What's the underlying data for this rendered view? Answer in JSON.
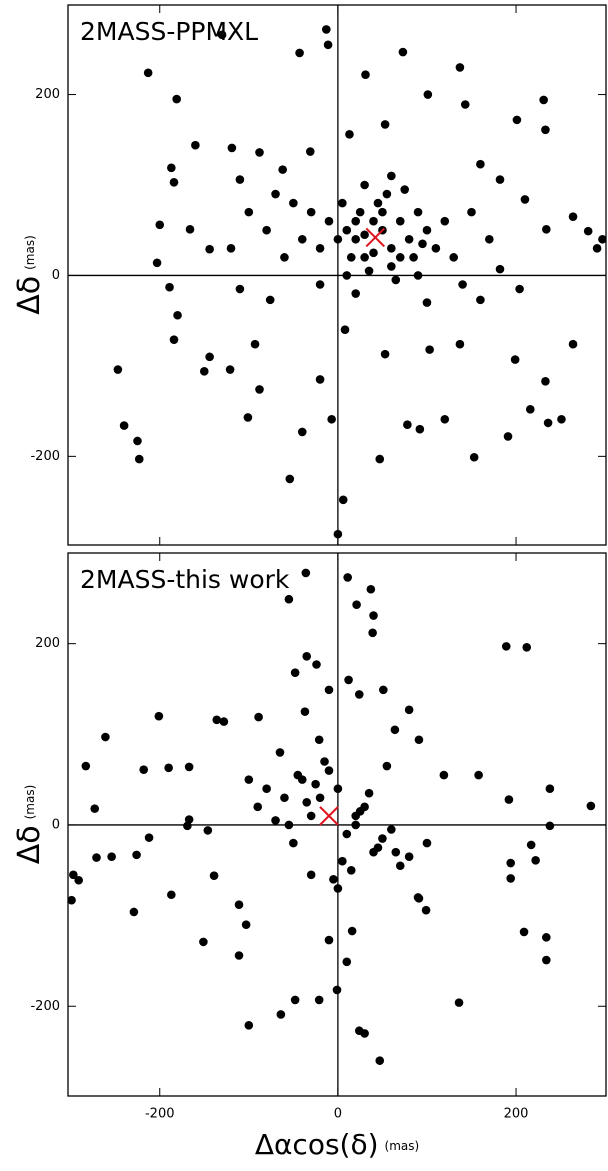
{
  "chart_data": [
    {
      "type": "scatter",
      "title": "2MASS-PPMXL",
      "ylabel": "Δδ",
      "ylabel_unit": "(mas)",
      "color": "#000000",
      "xlim": [
        -303,
        301
      ],
      "ylim": [
        -298,
        299
      ],
      "xticks": [
        -200,
        0,
        200
      ],
      "yticks": [
        -200,
        0,
        200
      ],
      "xtick_labels": false,
      "marker": {
        "x": 42,
        "y": 42,
        "color": "#e0141e"
      },
      "x": [
        -213,
        -181,
        -130,
        -43,
        -13,
        -11,
        73,
        31,
        137,
        231,
        233,
        201,
        143,
        101,
        53,
        13,
        -31,
        -88,
        -119,
        -160,
        -187,
        -184,
        -110,
        -62,
        -166,
        -200,
        -144,
        281,
        291,
        297,
        264,
        234,
        210,
        182,
        160,
        -203,
        -189,
        -180,
        -184,
        -144,
        -150,
        -121,
        -247,
        -240,
        -225,
        -223,
        -93,
        -88,
        -101,
        -40,
        -54,
        -7,
        6,
        0,
        47,
        78,
        92,
        120,
        153,
        191,
        236,
        251,
        233,
        199,
        216,
        264,
        137,
        103,
        53,
        -20,
        8,
        -76,
        -110,
        160,
        204,
        182,
        20,
        40,
        60,
        30,
        50,
        70,
        10,
        80,
        45,
        25,
        60,
        35,
        85,
        15,
        55,
        0,
        90,
        -10,
        100,
        75,
        30,
        -20,
        110,
        5,
        65,
        40,
        20,
        70,
        50,
        30,
        90,
        -30,
        120,
        -40,
        60,
        10,
        95,
        -50,
        130,
        -60,
        150,
        -80,
        140,
        -70,
        20,
        100,
        -20,
        -100,
        170,
        -120
      ],
      "y": [
        224,
        195,
        266,
        246,
        272,
        255,
        247,
        222,
        230,
        194,
        161,
        172,
        189,
        200,
        167,
        156,
        137,
        136,
        141,
        144,
        119,
        103,
        106,
        117,
        51,
        56,
        29,
        49,
        30,
        40,
        65,
        51,
        84,
        106,
        123,
        14,
        -13,
        -44,
        -71,
        -90,
        -106,
        -104,
        -104,
        -166,
        -183,
        -203,
        -76,
        -126,
        -157,
        -173,
        -225,
        -159,
        -248,
        -286,
        -203,
        -165,
        -170,
        -159,
        -201,
        -178,
        -163,
        -159,
        -117,
        -93,
        -148,
        -76,
        -76,
        -82,
        -87,
        -115,
        -60,
        -27,
        -15,
        -27,
        -15,
        7,
        40,
        60,
        30,
        20,
        50,
        60,
        50,
        40,
        80,
        70,
        10,
        5,
        20,
        20,
        90,
        40,
        70,
        60,
        50,
        95,
        100,
        30,
        30,
        80,
        -5,
        25,
        60,
        20,
        70,
        45,
        0,
        70,
        60,
        40,
        110,
        0,
        35,
        80,
        20,
        20,
        70,
        50,
        -10,
        90,
        -20,
        -30,
        -10,
        70,
        40,
        30
      ]
    },
    {
      "type": "scatter",
      "title": "2MASS-this work",
      "ylabel": "Δδ",
      "ylabel_unit": "(mas)",
      "xlabel": "Δαcos(δ)",
      "xlabel_unit": "(mas)",
      "color": "#000000",
      "xlim": [
        -303,
        301
      ],
      "ylim": [
        -299,
        300
      ],
      "xticks": [
        -200,
        0,
        200
      ],
      "yticks": [
        -200,
        0,
        200
      ],
      "xtick_labels": true,
      "marker": {
        "x": -10,
        "y": 10,
        "color": "#e0141e"
      },
      "x": [
        -36,
        11,
        37,
        -55,
        21,
        39,
        40,
        -35,
        -24,
        -48,
        -89,
        -136,
        -128,
        -201,
        -261,
        -283,
        -218,
        -190,
        -167,
        -273,
        -297,
        -291,
        -299,
        -254,
        -271,
        -226,
        -212,
        -229,
        -187,
        -167,
        -169,
        -146,
        -139,
        -111,
        -103,
        -111,
        -151,
        -100,
        -64,
        -48,
        -21,
        -1,
        10,
        -10,
        16,
        24,
        30,
        47,
        136,
        91,
        99,
        209,
        234,
        234,
        194,
        194,
        222,
        284,
        238,
        238,
        217,
        189,
        212,
        192,
        158,
        119,
        91,
        80,
        64,
        51,
        24,
        -10,
        12,
        -37,
        -21,
        -20,
        0,
        10,
        -30,
        -40,
        20,
        30,
        -50,
        -60,
        40,
        -10,
        5,
        -25,
        15,
        -35,
        25,
        50,
        -70,
        60,
        -80,
        -5,
        35,
        -45,
        45,
        70,
        -90,
        80,
        -15,
        0,
        -55,
        55,
        -30,
        20,
        90,
        -100,
        100,
        -65,
        65
      ],
      "y": [
        278,
        273,
        260,
        249,
        243,
        212,
        231,
        186,
        177,
        168,
        119,
        116,
        114,
        120,
        97,
        65,
        61,
        63,
        64,
        18,
        -55,
        -61,
        -83,
        -35,
        -36,
        -33,
        -14,
        -96,
        -77,
        6,
        -1,
        -6,
        -56,
        -88,
        -110,
        -144,
        -129,
        -221,
        -209,
        -193,
        -193,
        -182,
        -151,
        -127,
        -117,
        -227,
        -230,
        -260,
        -196,
        -81,
        -94,
        -118,
        -124,
        -149,
        -59,
        -42,
        -39,
        21,
        40,
        -1,
        -22,
        197,
        196,
        28,
        55,
        55,
        94,
        127,
        105,
        149,
        144,
        149,
        160,
        125,
        94,
        30,
        40,
        -10,
        10,
        50,
        0,
        20,
        -20,
        30,
        -30,
        60,
        -40,
        45,
        -50,
        25,
        15,
        -15,
        5,
        -5,
        40,
        -60,
        35,
        55,
        -25,
        -45,
        20,
        -35,
        70,
        -70,
        0,
        65,
        -55,
        10,
        -80,
        50,
        -20,
        80,
        -30
      ]
    }
  ]
}
